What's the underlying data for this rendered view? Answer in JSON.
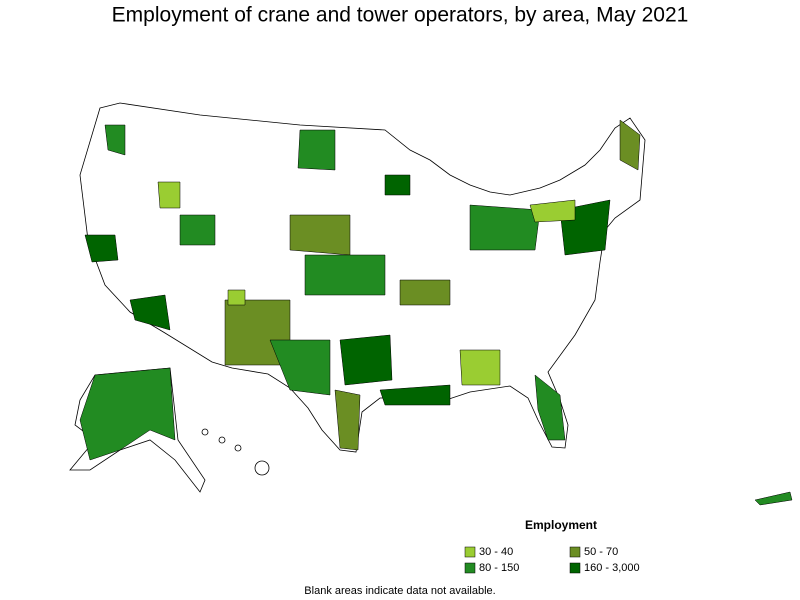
{
  "title": "Employment of crane and tower operators, by area, May 2021",
  "legend": {
    "title": "Employment",
    "items": [
      {
        "label": "30 - 40",
        "color": "#9acd32"
      },
      {
        "label": "50 - 70",
        "color": "#6b8e23"
      },
      {
        "label": "80 - 150",
        "color": "#228b22"
      },
      {
        "label": "160 - 3,000",
        "color": "#006400"
      }
    ]
  },
  "footnote": "Blank areas indicate data not available."
}
